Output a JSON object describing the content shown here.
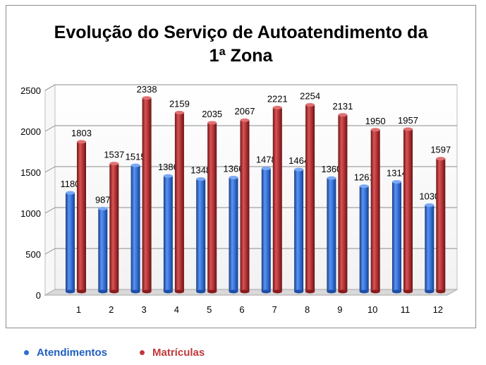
{
  "chart_data": {
    "type": "bar",
    "title_lines": [
      "Evolução do Serviço de Autoatendimento da",
      "1ª Zona"
    ],
    "xlabel": "",
    "ylabel": "",
    "ylim": [
      0,
      2500
    ],
    "yticks": [
      0,
      500,
      1000,
      1500,
      2000,
      2500
    ],
    "categories": [
      "1",
      "2",
      "3",
      "4",
      "5",
      "6",
      "7",
      "8",
      "9",
      "10",
      "11",
      "12"
    ],
    "series": [
      {
        "name": "Atendimentos",
        "color": "#2e6ed6",
        "values": [
          1180,
          987,
          1515,
          1386,
          1348,
          1366,
          1478,
          1464,
          1360,
          1261,
          1314,
          1030
        ]
      },
      {
        "name": "Matrículas",
        "color": "#c0393b",
        "values": [
          1803,
          1537,
          2338,
          2159,
          2035,
          2067,
          2221,
          2254,
          2131,
          1950,
          1957,
          1597
        ]
      }
    ],
    "grid": true,
    "legend_position": "bottom-left",
    "style": "3d-cylinder"
  }
}
